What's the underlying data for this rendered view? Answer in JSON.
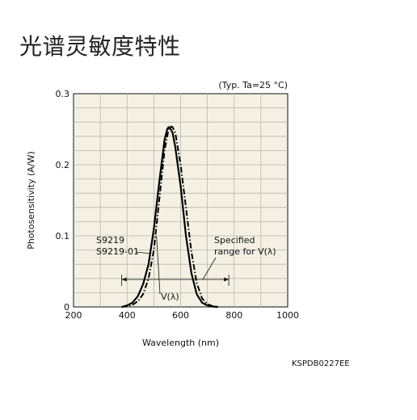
{
  "page": {
    "title": "光谱灵敏度特性",
    "condition_note": "(Typ. Ta=25 °C)",
    "document_code": "KSPDB0227EE"
  },
  "chart_data": {
    "type": "line",
    "xlabel": "Wavelength (nm)",
    "ylabel": "Photosensitivity (A/W)",
    "xlim": [
      200,
      1000
    ],
    "ylim": [
      0,
      0.3
    ],
    "x_ticks": [
      200,
      400,
      600,
      800,
      1000
    ],
    "x_tick_labels": [
      "200",
      "400",
      "600",
      "800",
      "1000"
    ],
    "y_ticks": [
      0,
      0.1,
      0.2,
      0.3
    ],
    "y_tick_labels": [
      "0",
      "0.1",
      "0.2",
      "0.3"
    ],
    "grid": true,
    "background": "#f4f1e4",
    "series": [
      {
        "name": "S9219",
        "style": "solid",
        "color": "#000000",
        "x": [
          380,
          400,
          420,
          440,
          460,
          480,
          500,
          520,
          540,
          550,
          555,
          560,
          570,
          580,
          600,
          620,
          640,
          660,
          680,
          700,
          720,
          740
        ],
        "y": [
          0,
          0.002,
          0.006,
          0.015,
          0.032,
          0.06,
          0.11,
          0.175,
          0.235,
          0.25,
          0.253,
          0.252,
          0.245,
          0.225,
          0.17,
          0.1,
          0.048,
          0.018,
          0.006,
          0.002,
          0.0005,
          0
        ]
      },
      {
        "name": "V(λ)",
        "style": "dashdot",
        "color": "#000000",
        "x": [
          380,
          400,
          420,
          440,
          460,
          480,
          500,
          520,
          540,
          555,
          565,
          570,
          580,
          600,
          620,
          640,
          660,
          680,
          700,
          720,
          740
        ],
        "y": [
          0,
          0.001,
          0.003,
          0.008,
          0.018,
          0.04,
          0.08,
          0.15,
          0.22,
          0.25,
          0.254,
          0.253,
          0.245,
          0.2,
          0.14,
          0.078,
          0.034,
          0.012,
          0.004,
          0.001,
          0
        ]
      }
    ],
    "annotations": {
      "series_label_line1": "S9219",
      "series_label_line2": "S9219-01",
      "vlambda_label": "V(λ)",
      "range_label_line1": "Specified",
      "range_label_line2": "range for V(λ)",
      "specified_range": [
        380,
        780
      ]
    }
  }
}
